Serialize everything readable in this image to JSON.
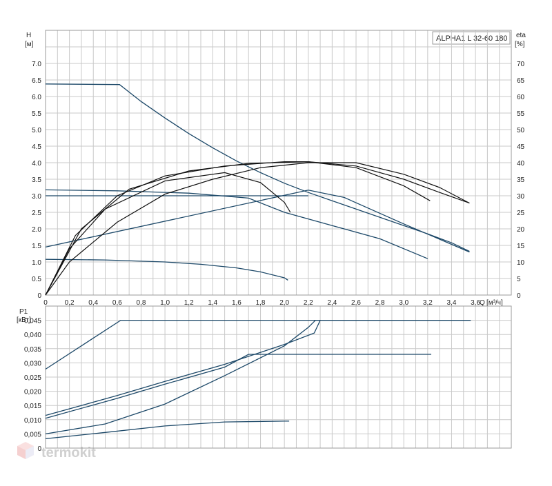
{
  "watermark": {
    "text": "termokit",
    "color": "#d0d0d0",
    "icon": "cube-logo-icon"
  },
  "colors": {
    "pump_curves": "#1c4868",
    "efficiency_curves": "#101010",
    "grid": "#c9c9c9"
  },
  "chart_data": [
    {
      "type": "line",
      "model_label": "ALPHA1 L 32-60 180",
      "y_axis_label": "H",
      "y_unit": "[м]",
      "y2_axis_label": "eta",
      "y2_unit": "[%]",
      "x_axis_label": "Q",
      "x_unit": "[м³/ч]",
      "xlim": [
        0,
        3.9
      ],
      "ylim": [
        0,
        8.0
      ],
      "y2lim": [
        0,
        80
      ],
      "grid": true,
      "x_ticks": [
        "0",
        "0,2",
        "0,4",
        "0,6",
        "0,8",
        "1,0",
        "1,2",
        "1,4",
        "1,6",
        "1,8",
        "2,0",
        "2,2",
        "2,4",
        "2,6",
        "2,8",
        "3,0",
        "3,2",
        "3,4",
        "3,6"
      ],
      "y_ticks": [
        "0",
        "0.5",
        "1.0",
        "1.5",
        "2.0",
        "2.5",
        "3.0",
        "3.5",
        "4.0",
        "4.5",
        "5.0",
        "5.5",
        "6.0",
        "6.5",
        "7.0"
      ],
      "y2_ticks": [
        "0",
        "5",
        "10",
        "15",
        "20",
        "25",
        "30",
        "35",
        "40",
        "45",
        "50",
        "55",
        "60",
        "65",
        "70"
      ],
      "head_curves": [
        [
          [
            0,
            6.38
          ],
          [
            0.62,
            6.36
          ],
          [
            0.8,
            5.85
          ],
          [
            1.0,
            5.35
          ],
          [
            1.2,
            4.88
          ],
          [
            1.4,
            4.45
          ],
          [
            1.6,
            4.05
          ],
          [
            1.8,
            3.7
          ],
          [
            2.0,
            3.38
          ],
          [
            2.2,
            3.1
          ],
          [
            2.4,
            2.85
          ],
          [
            2.6,
            2.6
          ],
          [
            2.8,
            2.35
          ],
          [
            3.0,
            2.1
          ],
          [
            3.2,
            1.85
          ],
          [
            3.4,
            1.58
          ],
          [
            3.55,
            1.32
          ]
        ],
        [
          [
            0,
            1.45
          ],
          [
            2.2,
            3.17
          ],
          [
            2.5,
            2.95
          ],
          [
            3.0,
            2.15
          ],
          [
            3.55,
            1.3
          ]
        ],
        [
          [
            0,
            3.0
          ],
          [
            2.2,
            3.0
          ]
        ],
        [
          [
            0,
            3.18
          ],
          [
            0.6,
            3.15
          ],
          [
            1.2,
            3.08
          ],
          [
            1.7,
            2.93
          ],
          [
            2.0,
            2.5
          ],
          [
            2.4,
            2.1
          ],
          [
            2.8,
            1.7
          ],
          [
            3.2,
            1.1
          ]
        ],
        [
          [
            0,
            1.08
          ],
          [
            0.5,
            1.06
          ],
          [
            1.0,
            1.0
          ],
          [
            1.3,
            0.93
          ],
          [
            1.6,
            0.82
          ],
          [
            1.8,
            0.7
          ],
          [
            2.0,
            0.52
          ],
          [
            2.03,
            0.45
          ]
        ]
      ],
      "efficiency_curves": [
        [
          [
            0,
            0
          ],
          [
            0.25,
            18
          ],
          [
            0.6,
            30
          ],
          [
            1.0,
            36
          ],
          [
            1.5,
            39
          ],
          [
            2.0,
            40.3
          ],
          [
            2.2,
            40.3
          ],
          [
            2.6,
            39
          ],
          [
            3.0,
            35
          ],
          [
            3.3,
            31
          ],
          [
            3.55,
            27.8
          ]
        ],
        [
          [
            0,
            0
          ],
          [
            0.3,
            20
          ],
          [
            0.7,
            32
          ],
          [
            1.2,
            37.5
          ],
          [
            1.7,
            39.8
          ],
          [
            2.2,
            40.3
          ],
          [
            2.6,
            38.5
          ],
          [
            3.0,
            33
          ],
          [
            3.22,
            28.5
          ]
        ],
        [
          [
            0,
            0
          ],
          [
            0.2,
            14
          ],
          [
            0.5,
            26
          ],
          [
            1.0,
            34.5
          ],
          [
            1.5,
            37
          ],
          [
            1.8,
            34
          ],
          [
            2.0,
            28
          ],
          [
            2.05,
            25
          ]
        ],
        [
          [
            0,
            0
          ],
          [
            0.2,
            10
          ],
          [
            0.6,
            22
          ],
          [
            1.0,
            30.5
          ],
          [
            1.4,
            35
          ],
          [
            1.8,
            38.5
          ],
          [
            2.2,
            40
          ],
          [
            2.6,
            40
          ],
          [
            3.0,
            36.5
          ],
          [
            3.3,
            32.5
          ],
          [
            3.55,
            27.8
          ]
        ]
      ]
    },
    {
      "type": "line",
      "y_axis_label": "P1",
      "y_unit": "[кВт]",
      "xlim": [
        0,
        3.9
      ],
      "ylim": [
        0,
        0.05
      ],
      "grid": true,
      "y_ticks": [
        "0",
        "0,005",
        "0,010",
        "0,015",
        "0,020",
        "0,025",
        "0,030",
        "0,035",
        "0,040",
        "0,045"
      ],
      "power_curves": [
        [
          [
            0,
            0.0278
          ],
          [
            0.63,
            0.045
          ],
          [
            3.56,
            0.045
          ]
        ],
        [
          [
            0,
            0.0115
          ],
          [
            0.6,
            0.0185
          ],
          [
            1.0,
            0.0235
          ],
          [
            1.5,
            0.0295
          ],
          [
            2.0,
            0.0365
          ],
          [
            2.25,
            0.0405
          ],
          [
            2.3,
            0.045
          ]
        ],
        [
          [
            0,
            0.0105
          ],
          [
            0.6,
            0.0175
          ],
          [
            1.0,
            0.0225
          ],
          [
            1.5,
            0.0285
          ],
          [
            1.7,
            0.033
          ],
          [
            3.23,
            0.033
          ]
        ],
        [
          [
            0,
            0.005
          ],
          [
            0.5,
            0.0085
          ],
          [
            1.0,
            0.0155
          ],
          [
            1.5,
            0.0255
          ],
          [
            2.0,
            0.036
          ],
          [
            2.2,
            0.0425
          ],
          [
            2.26,
            0.045
          ],
          [
            3.56,
            0.045
          ]
        ],
        [
          [
            0,
            0.0033
          ],
          [
            0.5,
            0.0055
          ],
          [
            1.0,
            0.0078
          ],
          [
            1.5,
            0.0092
          ],
          [
            2.0,
            0.0095
          ],
          [
            2.04,
            0.0095
          ]
        ]
      ]
    }
  ]
}
